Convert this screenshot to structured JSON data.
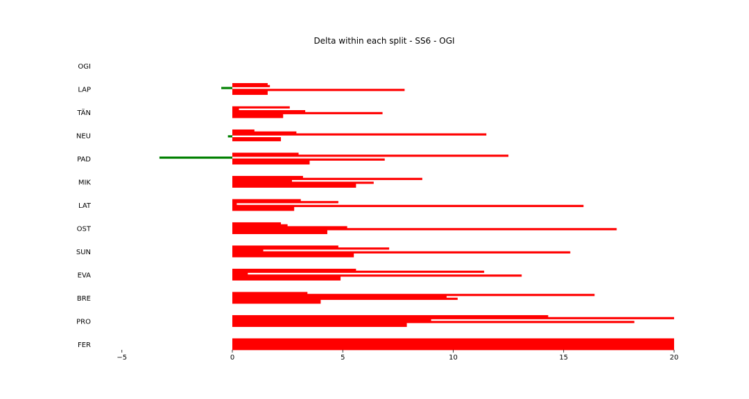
{
  "chart_data": {
    "type": "bar",
    "orientation": "horizontal",
    "title": "Delta within each split - SS6 - OGI",
    "xlabel": "",
    "ylabel": "",
    "xlim": [
      -6,
      20
    ],
    "xticks": [
      "−5",
      "0",
      "5",
      "10",
      "15",
      "20"
    ],
    "xtick_values": [
      -5,
      0,
      5,
      10,
      15,
      20
    ],
    "grid": false,
    "legend": "none",
    "colors": {
      "positive": "#ff0000",
      "negative": "#008000"
    },
    "categories": [
      "OGI",
      "LAP",
      "TÄN",
      "NEU",
      "PAD",
      "MIK",
      "LAT",
      "OST",
      "SUN",
      "EVA",
      "BRE",
      "PRO",
      "FER"
    ],
    "bars_per_category": 6,
    "values": [
      [
        0,
        0,
        0,
        0,
        0,
        0
      ],
      [
        1.6,
        1.7,
        -0.5,
        7.8,
        1.6,
        1.6
      ],
      [
        2.6,
        0.3,
        3.3,
        6.8,
        2.3,
        2.3
      ],
      [
        1.0,
        2.9,
        11.5,
        -0.2,
        2.2,
        2.2
      ],
      [
        3.0,
        12.5,
        -3.3,
        6.9,
        3.5,
        3.5
      ],
      [
        3.2,
        8.6,
        2.7,
        6.4,
        5.6,
        5.6
      ],
      [
        3.1,
        4.8,
        0.2,
        15.9,
        2.8,
        2.8
      ],
      [
        2.2,
        2.5,
        5.2,
        17.4,
        4.3,
        4.3
      ],
      [
        4.8,
        7.1,
        1.4,
        15.3,
        5.5,
        5.5
      ],
      [
        5.6,
        11.4,
        0.7,
        13.1,
        4.9,
        4.9
      ],
      [
        3.4,
        16.4,
        9.7,
        10.2,
        4.0,
        4.0
      ],
      [
        14.3,
        20.0,
        9.0,
        18.2,
        7.9,
        7.9
      ],
      [
        20.0,
        20.0,
        20.0,
        20.0,
        20.0,
        20.0
      ]
    ]
  }
}
